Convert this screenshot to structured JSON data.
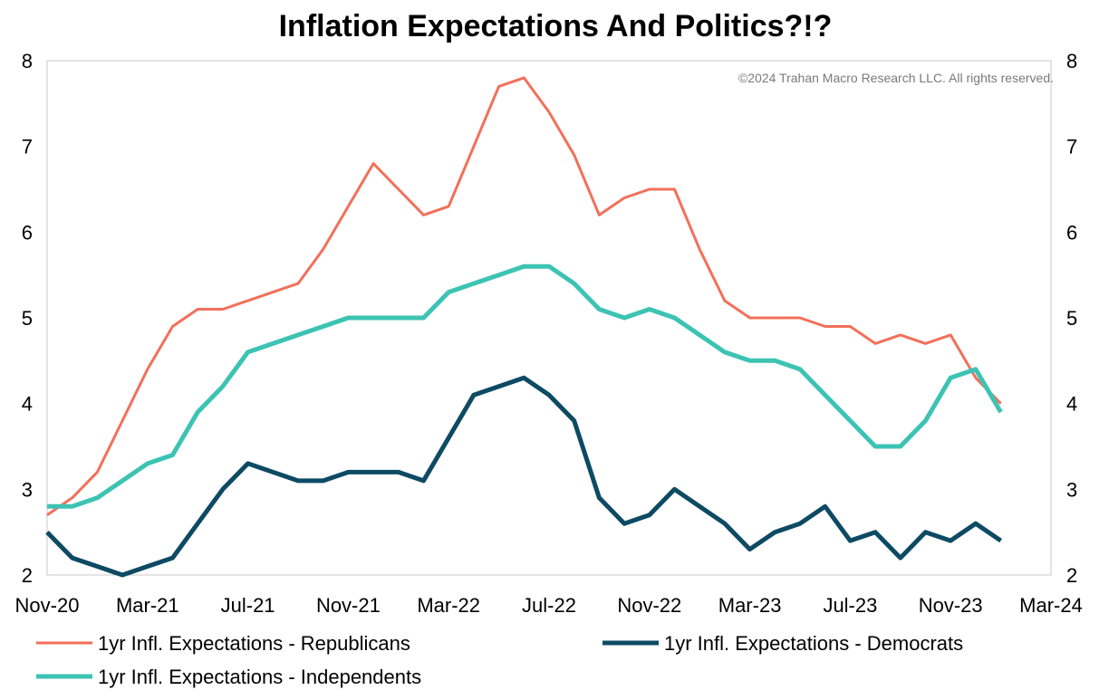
{
  "chart_data": {
    "type": "line",
    "title": "Inflation Expectations And Politics?!?",
    "copyright": "©2024 Trahan Macro Research LLC. All rights reserved.",
    "xlabel": "",
    "ylabel": "",
    "ylim": [
      2,
      8
    ],
    "yticks": [
      "2",
      "3",
      "4",
      "5",
      "6",
      "7",
      "8"
    ],
    "y2ticks": [
      "2",
      "3",
      "4",
      "5",
      "6",
      "7",
      "8"
    ],
    "x_range": [
      "2020-11",
      "2024-03"
    ],
    "xticks": [
      {
        "label": "Nov-20",
        "date": "2020-11"
      },
      {
        "label": "Mar-21",
        "date": "2021-03"
      },
      {
        "label": "Jul-21",
        "date": "2021-07"
      },
      {
        "label": "Nov-21",
        "date": "2021-11"
      },
      {
        "label": "Mar-22",
        "date": "2022-03"
      },
      {
        "label": "Jul-22",
        "date": "2022-07"
      },
      {
        "label": "Nov-22",
        "date": "2022-11"
      },
      {
        "label": "Mar-23",
        "date": "2023-03"
      },
      {
        "label": "Jul-23",
        "date": "2023-07"
      },
      {
        "label": "Nov-23",
        "date": "2023-11"
      },
      {
        "label": "Mar-24",
        "date": "2024-03"
      }
    ],
    "x": [
      "2020-11",
      "2020-12",
      "2021-01",
      "2021-02",
      "2021-03",
      "2021-04",
      "2021-05",
      "2021-06",
      "2021-07",
      "2021-08",
      "2021-09",
      "2021-10",
      "2021-11",
      "2021-12",
      "2022-01",
      "2022-02",
      "2022-03",
      "2022-04",
      "2022-05",
      "2022-06",
      "2022-07",
      "2022-08",
      "2022-09",
      "2022-10",
      "2022-11",
      "2022-12",
      "2023-01",
      "2023-02",
      "2023-03",
      "2023-04",
      "2023-05",
      "2023-06",
      "2023-07",
      "2023-08",
      "2023-09",
      "2023-10",
      "2023-11",
      "2023-12",
      "2024-01"
    ],
    "grid": false,
    "legend_placement": "bottom",
    "series": [
      {
        "name": "1yr Infl. Expectations - Republicans",
        "color": "#f2705a",
        "line_width": "thin",
        "values": [
          2.7,
          2.9,
          3.2,
          3.8,
          4.4,
          4.9,
          5.1,
          5.1,
          5.2,
          5.3,
          5.4,
          5.8,
          6.3,
          6.8,
          6.5,
          6.2,
          6.3,
          7.0,
          7.7,
          7.8,
          7.4,
          6.9,
          6.2,
          6.4,
          6.5,
          6.5,
          5.8,
          5.2,
          5.0,
          5.0,
          5.0,
          4.9,
          4.9,
          4.7,
          4.8,
          4.7,
          4.8,
          4.3,
          4.0
        ]
      },
      {
        "name": "1yr Infl. Expectations - Democrats",
        "color": "#0d4a63",
        "line_width": "thick",
        "values": [
          2.5,
          2.2,
          2.1,
          2.0,
          2.1,
          2.2,
          2.6,
          3.0,
          3.3,
          3.2,
          3.1,
          3.1,
          3.2,
          3.2,
          3.2,
          3.1,
          3.6,
          4.1,
          4.2,
          4.3,
          4.1,
          3.8,
          2.9,
          2.6,
          2.7,
          3.0,
          2.8,
          2.6,
          2.3,
          2.5,
          2.6,
          2.8,
          2.4,
          2.5,
          2.2,
          2.5,
          2.4,
          2.6,
          2.4
        ]
      },
      {
        "name": "1yr Infl. Expectations - Independents",
        "color": "#3cc3b3",
        "line_width": "thick",
        "values": [
          2.8,
          2.8,
          2.9,
          3.1,
          3.3,
          3.4,
          3.9,
          4.2,
          4.6,
          4.7,
          4.8,
          4.9,
          5.0,
          5.0,
          5.0,
          5.0,
          5.3,
          5.4,
          5.5,
          5.6,
          5.6,
          5.4,
          5.1,
          5.0,
          5.1,
          5.0,
          4.8,
          4.6,
          4.5,
          4.5,
          4.4,
          4.1,
          3.8,
          3.5,
          3.5,
          3.8,
          4.3,
          4.4,
          3.9
        ]
      }
    ]
  }
}
